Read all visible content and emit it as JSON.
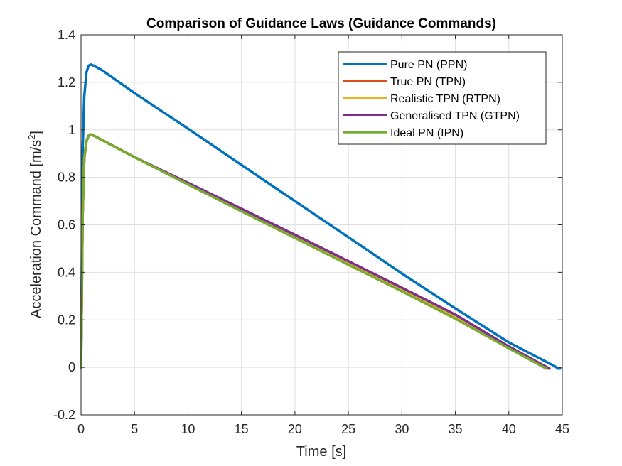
{
  "chart_data": {
    "type": "line",
    "title": "Comparison of Guidance Laws (Guidance Commands)",
    "xlabel": "Time [s]",
    "ylabel": "Acceleration Command [m/s",
    "ylabel_superscript": "2",
    "ylabel_suffix": "]",
    "xlim": [
      0,
      45
    ],
    "ylim": [
      -0.2,
      1.4
    ],
    "xticks": [
      0,
      5,
      10,
      15,
      20,
      25,
      30,
      35,
      40,
      45
    ],
    "xtick_labels": [
      "0",
      "5",
      "10",
      "15",
      "20",
      "25",
      "30",
      "35",
      "40",
      "45"
    ],
    "yticks": [
      -0.2,
      0,
      0.2,
      0.4,
      0.6,
      0.8,
      1,
      1.2,
      1.4
    ],
    "ytick_labels": [
      "-0.2",
      "0",
      "0.2",
      "0.4",
      "0.6",
      "0.8",
      "1",
      "1.2",
      "1.4"
    ],
    "grid": true,
    "legend_position": "top-right",
    "series": [
      {
        "name": "Pure PN (PPN)",
        "color": "#0072BD",
        "x": [
          0,
          0.15,
          0.3,
          0.5,
          0.7,
          0.9,
          1.2,
          2,
          5,
          10,
          15,
          20,
          25,
          30,
          35,
          40,
          44.3,
          44.6,
          44.8
        ],
        "y": [
          0,
          0.92,
          1.14,
          1.24,
          1.27,
          1.275,
          1.27,
          1.25,
          1.155,
          1.005,
          0.852,
          0.7,
          0.548,
          0.395,
          0.248,
          0.105,
          0.005,
          -0.005,
          -0.005
        ]
      },
      {
        "name": "True PN (TPN)",
        "color": "#D95319",
        "x": [
          0,
          0.15,
          0.3,
          0.5,
          0.7,
          0.9,
          1.2,
          5,
          10,
          15,
          20,
          25,
          30,
          35,
          40,
          43.7
        ],
        "y": [
          0,
          0.65,
          0.88,
          0.95,
          0.975,
          0.98,
          0.975,
          0.885,
          0.775,
          0.665,
          0.553,
          0.44,
          0.328,
          0.215,
          0.085,
          -0.005
        ]
      },
      {
        "name": "Realistic TPN (RTPN)",
        "color": "#EDB120",
        "x": [
          0,
          0.15,
          0.3,
          0.5,
          0.7,
          0.9,
          1.2,
          5,
          10,
          15,
          20,
          25,
          30,
          35,
          40,
          43.7
        ],
        "y": [
          0,
          0.65,
          0.88,
          0.95,
          0.975,
          0.98,
          0.975,
          0.885,
          0.775,
          0.665,
          0.553,
          0.44,
          0.328,
          0.215,
          0.085,
          -0.005
        ]
      },
      {
        "name": "Generalised TPN (GTPN)",
        "color": "#7E2F8E",
        "x": [
          0,
          0.15,
          0.3,
          0.5,
          0.7,
          0.9,
          1.2,
          5,
          10,
          15,
          20,
          25,
          30,
          35,
          40,
          43.8
        ],
        "y": [
          0,
          0.65,
          0.88,
          0.95,
          0.975,
          0.98,
          0.975,
          0.885,
          0.777,
          0.668,
          0.558,
          0.447,
          0.335,
          0.222,
          0.088,
          -0.005
        ]
      },
      {
        "name": "Ideal PN (IPN)",
        "color": "#77AC30",
        "x": [
          0,
          0.15,
          0.3,
          0.5,
          0.7,
          0.9,
          1.2,
          5,
          10,
          15,
          20,
          25,
          30,
          35,
          40,
          43.5
        ],
        "y": [
          0,
          0.65,
          0.88,
          0.95,
          0.975,
          0.98,
          0.975,
          0.885,
          0.77,
          0.657,
          0.545,
          0.432,
          0.32,
          0.205,
          0.08,
          -0.005
        ]
      }
    ]
  }
}
